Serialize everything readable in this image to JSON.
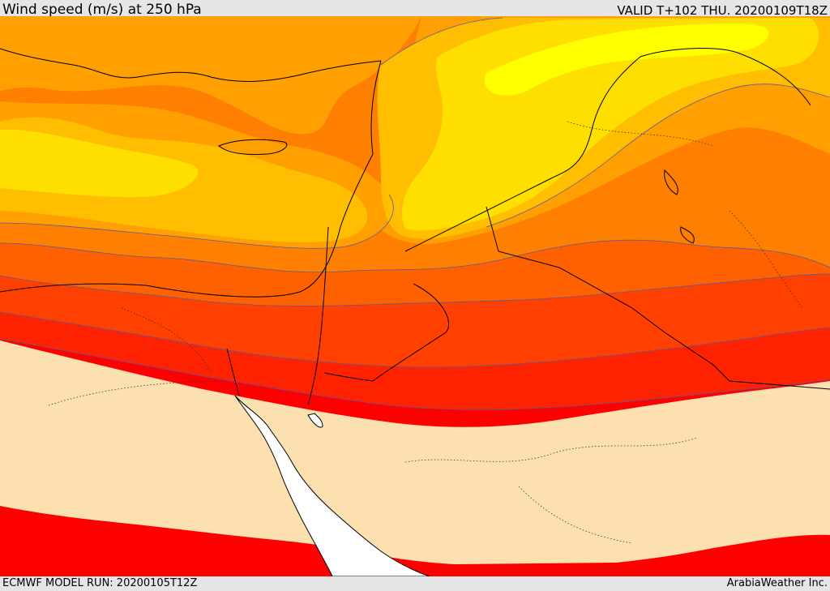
{
  "header": {
    "title": "Wind speed (m/s) at 250 hPa",
    "valid": "VALID T+102 THU. 20200109T18Z"
  },
  "footer": {
    "model_run": "ECMWF MODEL RUN: 20200105T12Z",
    "credit": "ArabiaWeather Inc."
  },
  "map": {
    "field": "wind speed at 250 hPa",
    "colors": {
      "below_threshold": "#fde0b0",
      "band_1": "#ff0000",
      "band_2": "#ff2200",
      "band_3": "#ff4000",
      "band_4": "#ff6000",
      "band_5": "#ff8000",
      "band_6": "#ffa000",
      "band_7": "#ffbf00",
      "band_8": "#ffdf00",
      "band_9": "#ffff00",
      "sea_mask": "#ffffff",
      "contour": "#5a5aa0",
      "coastline": "#000000"
    }
  }
}
